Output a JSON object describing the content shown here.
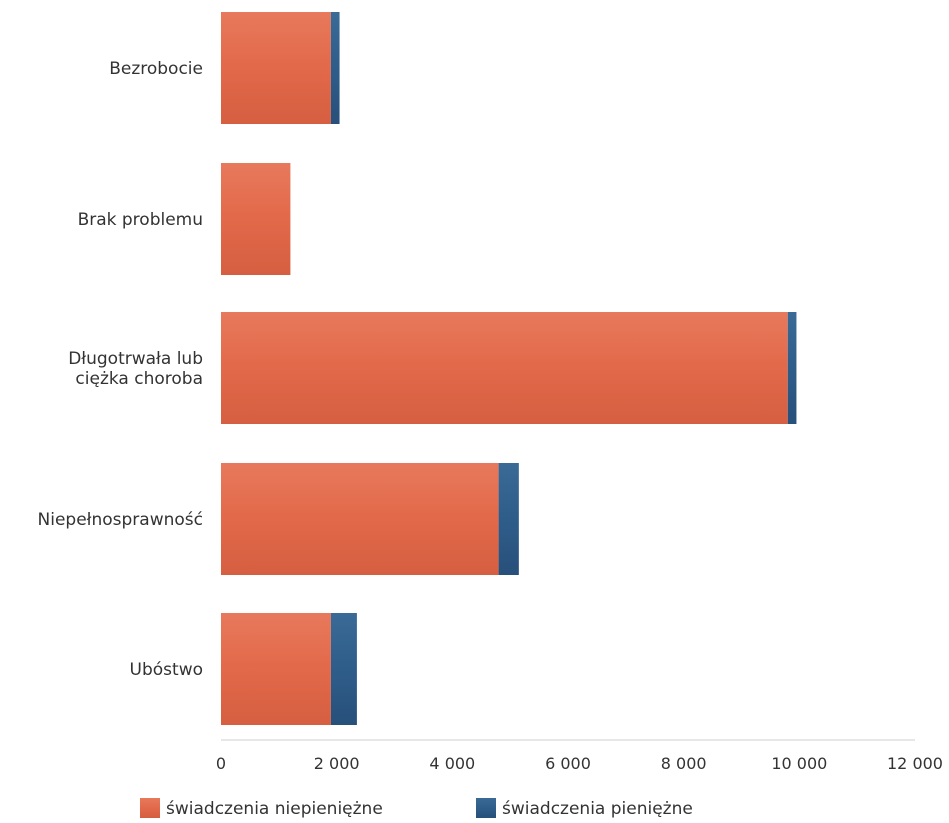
{
  "chart_data": {
    "type": "bar",
    "orientation": "horizontal",
    "stacked": true,
    "categories": [
      [
        "Bezrobocie"
      ],
      [
        "Brak problemu"
      ],
      [
        "Długotrwała lub",
        "ciężka choroba"
      ],
      [
        "Niepełnosprawność"
      ],
      [
        "Ubóstwo"
      ]
    ],
    "series": [
      {
        "name": "świadczenia niepieniężne",
        "color": "#e2694a",
        "values": [
          1900,
          1200,
          9800,
          4800,
          1900
        ]
      },
      {
        "name": "świadczenia pieniężne",
        "color": "#2f5d8a",
        "values": [
          150,
          0,
          150,
          350,
          450
        ]
      }
    ],
    "xlim": [
      0,
      12000
    ],
    "xticks": [
      0,
      2000,
      4000,
      6000,
      8000,
      10000,
      12000
    ],
    "xtick_labels": [
      "0",
      "2 000",
      "4 000",
      "6 000",
      "8 000",
      "10 000",
      "12 000"
    ],
    "grid": false,
    "legend_position": "bottom-left"
  }
}
